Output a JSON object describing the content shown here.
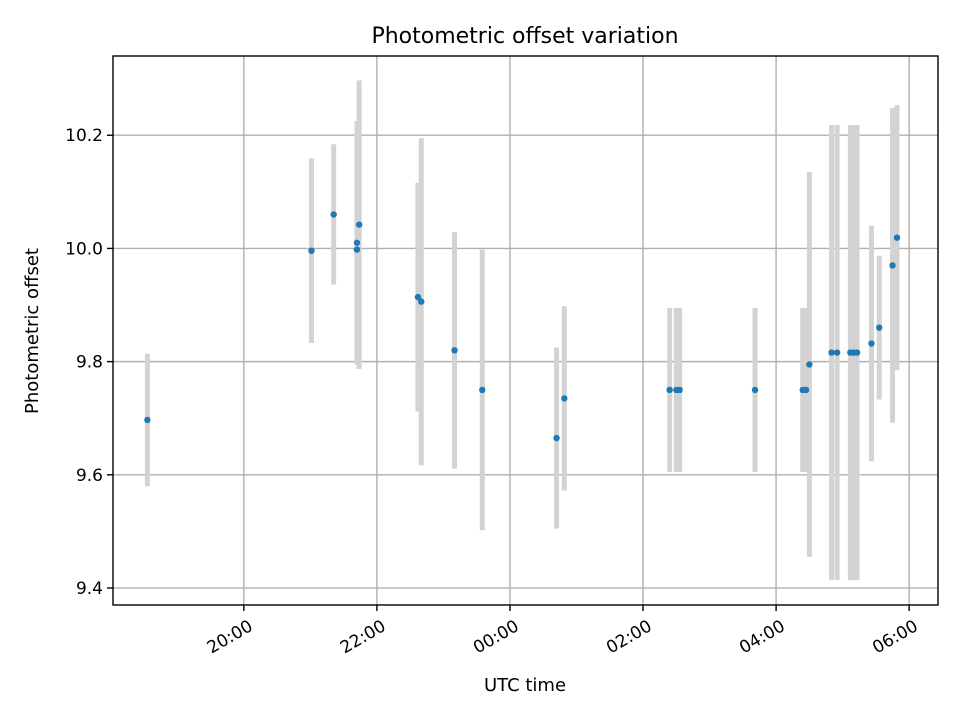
{
  "chart_data": {
    "type": "scatter",
    "title": "Photometric offset variation",
    "xlabel": "UTC time",
    "ylabel": "Photometric offset",
    "x_axis_kind": "time",
    "x_tick_labels": [
      "20:00",
      "22:00",
      "00:00",
      "02:00",
      "04:00",
      "06:00"
    ],
    "x_ticks": [
      "20:00",
      "22:00",
      "24:00",
      "26:00",
      "28:00",
      "30:00"
    ],
    "xlim": [
      "18:02",
      "30:26"
    ],
    "y_ticks": [
      9.4,
      9.6,
      9.8,
      10.0,
      10.2
    ],
    "y_tick_labels": [
      "9.4",
      "9.6",
      "9.8",
      "10.0",
      "10.2"
    ],
    "ylim": [
      9.37,
      10.34
    ],
    "grid": true,
    "colors": {
      "points": "#1f77b4",
      "error_bars": "#d3d3d3",
      "grid": "#b0b0b0"
    },
    "points": [
      {
        "x": "18:33",
        "y": 9.697,
        "yerr": 0.117
      },
      {
        "x": "21:01",
        "y": 9.996,
        "yerr": 0.163
      },
      {
        "x": "21:21",
        "y": 10.06,
        "yerr": 0.124
      },
      {
        "x": "21:42",
        "y": 10.01,
        "yerr": 0.215
      },
      {
        "x": "21:42",
        "y": 9.998,
        "yerr": 0.2
      },
      {
        "x": "21:44",
        "y": 10.042,
        "yerr": 0.255
      },
      {
        "x": "22:37",
        "y": 9.914,
        "yerr": 0.202
      },
      {
        "x": "22:40",
        "y": 9.906,
        "yerr": 0.289
      },
      {
        "x": "23:10",
        "y": 9.82,
        "yerr": 0.209
      },
      {
        "x": "23:35",
        "y": 9.75,
        "yerr": 0.248
      },
      {
        "x": "24:42",
        "y": 9.665,
        "yerr": 0.16
      },
      {
        "x": "24:49",
        "y": 9.735,
        "yerr": 0.163
      },
      {
        "x": "26:24",
        "y": 9.75,
        "yerr": 0.145
      },
      {
        "x": "26:30",
        "y": 9.75,
        "yerr": 0.145
      },
      {
        "x": "26:33",
        "y": 9.75,
        "yerr": 0.145
      },
      {
        "x": "27:41",
        "y": 9.75,
        "yerr": 0.145
      },
      {
        "x": "28:24",
        "y": 9.75,
        "yerr": 0.145
      },
      {
        "x": "28:27",
        "y": 9.75,
        "yerr": 0.145
      },
      {
        "x": "28:30",
        "y": 9.795,
        "yerr": 0.34
      },
      {
        "x": "28:50",
        "y": 9.816,
        "yerr": 0.402
      },
      {
        "x": "28:55",
        "y": 9.816,
        "yerr": 0.402
      },
      {
        "x": "29:07",
        "y": 9.816,
        "yerr": 0.402
      },
      {
        "x": "29:10",
        "y": 9.816,
        "yerr": 0.402
      },
      {
        "x": "29:13",
        "y": 9.816,
        "yerr": 0.402
      },
      {
        "x": "29:26",
        "y": 9.832,
        "yerr": 0.208
      },
      {
        "x": "29:33",
        "y": 9.86,
        "yerr": 0.127
      },
      {
        "x": "29:45",
        "y": 9.97,
        "yerr": 0.278
      },
      {
        "x": "29:49",
        "y": 10.019,
        "yerr": 0.234
      }
    ]
  }
}
